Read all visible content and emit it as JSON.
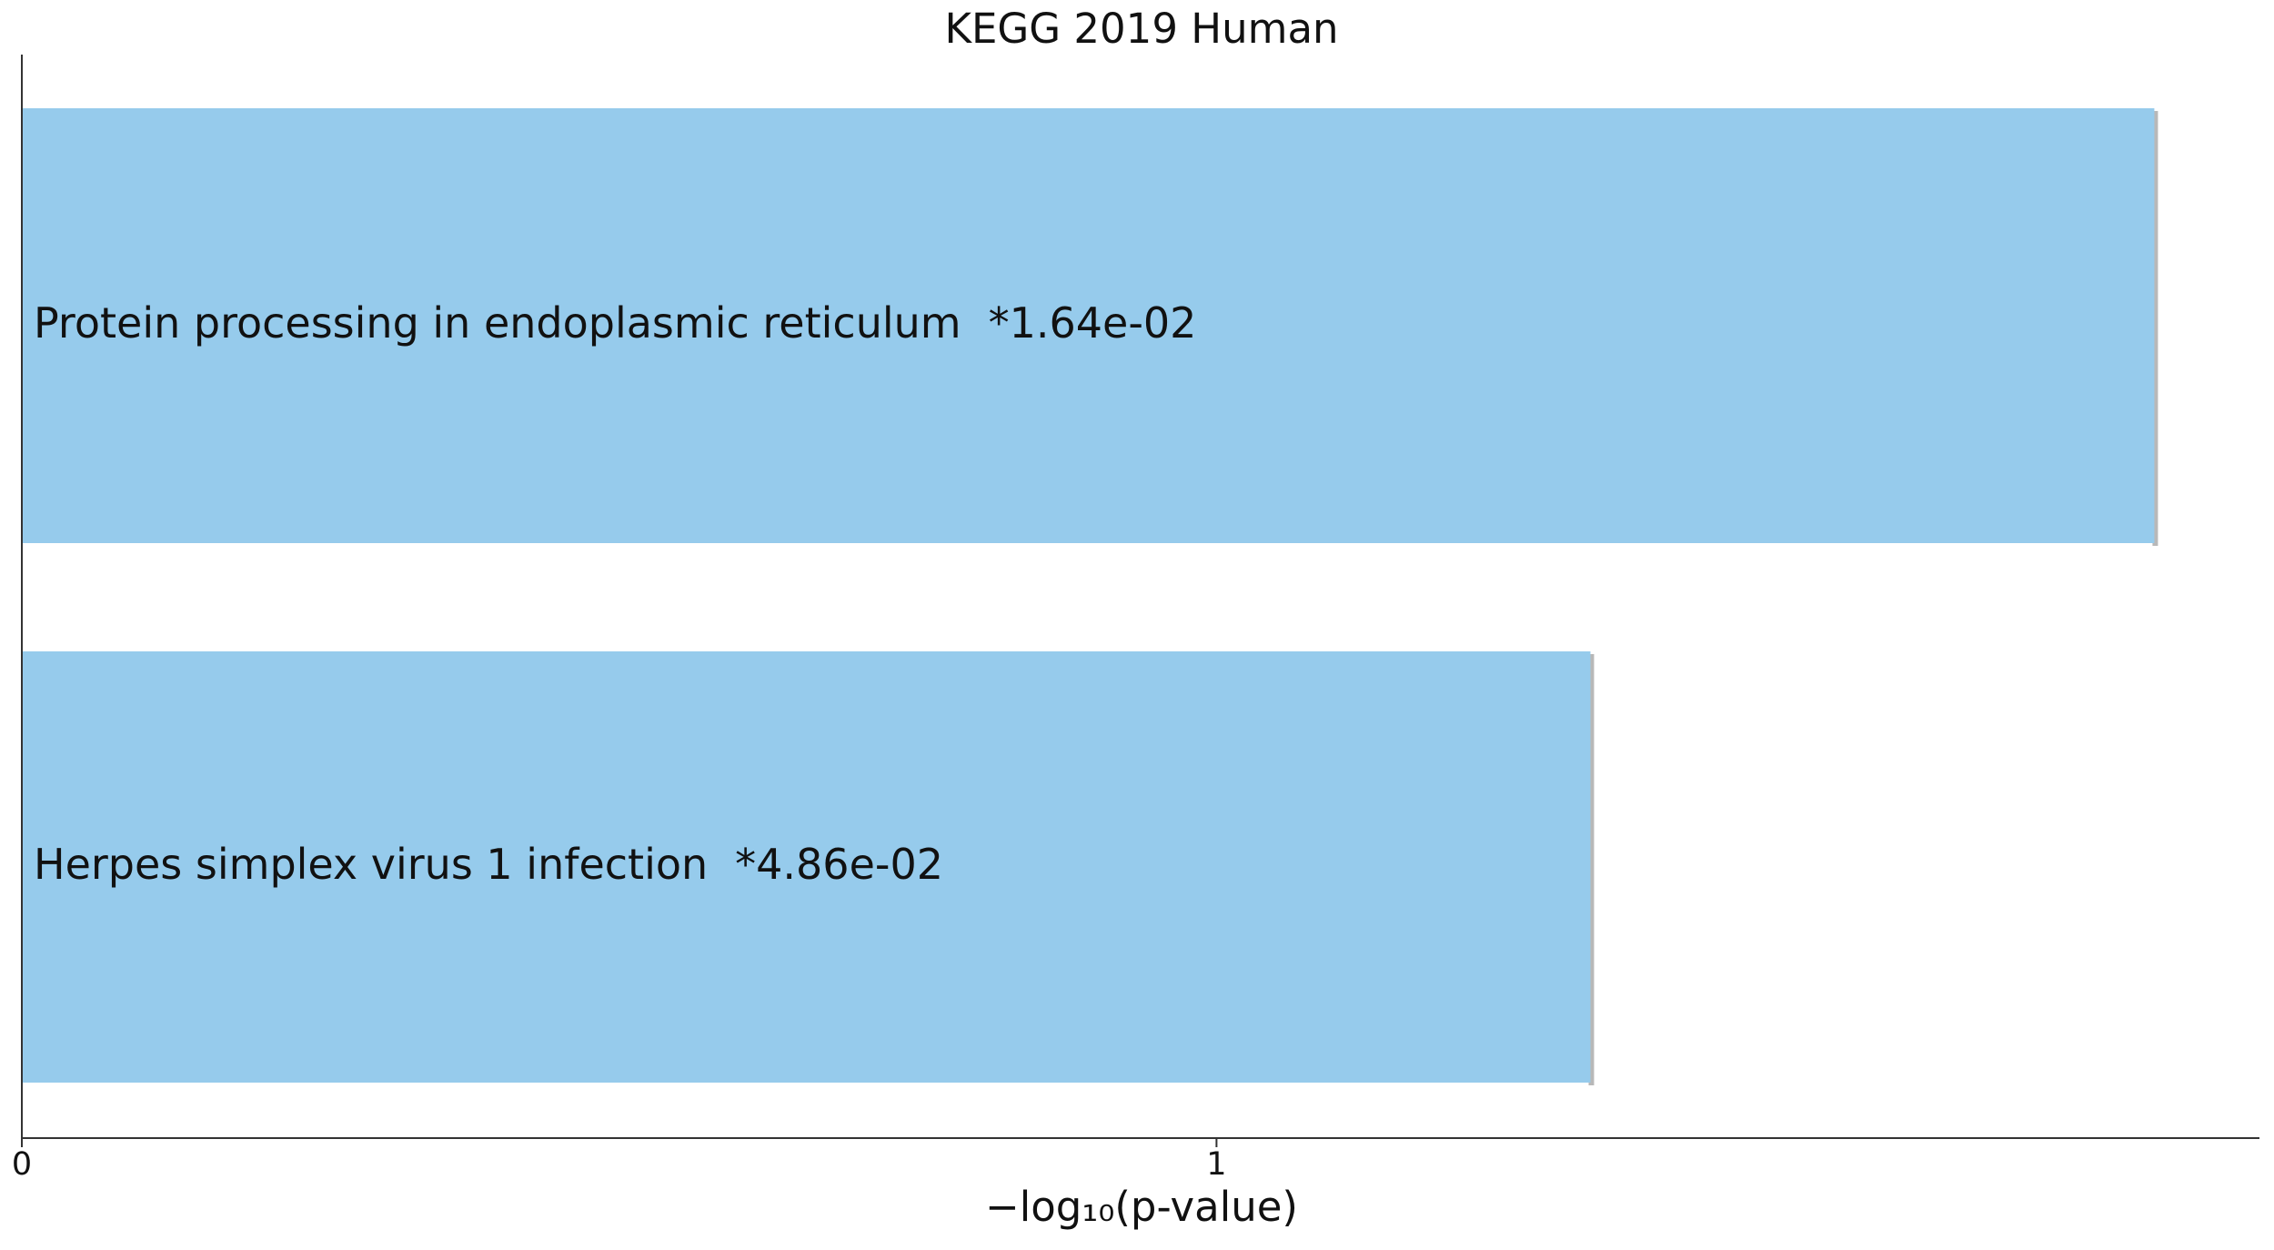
{
  "chart_data": {
    "type": "barh",
    "title": "KEGG 2019 Human",
    "categories": [
      "Protein processing in endoplasmic reticulum",
      "Herpes simplex virus 1 infection"
    ],
    "p_value_labels": [
      "*1.64e-02",
      "*4.86e-02"
    ],
    "values": [
      1.785,
      1.313
    ],
    "color": "#96cbec",
    "xlabel": "−log₁₀(p-value)",
    "xlim": [
      0,
      1.873
    ],
    "xticks": [
      0,
      1
    ]
  }
}
